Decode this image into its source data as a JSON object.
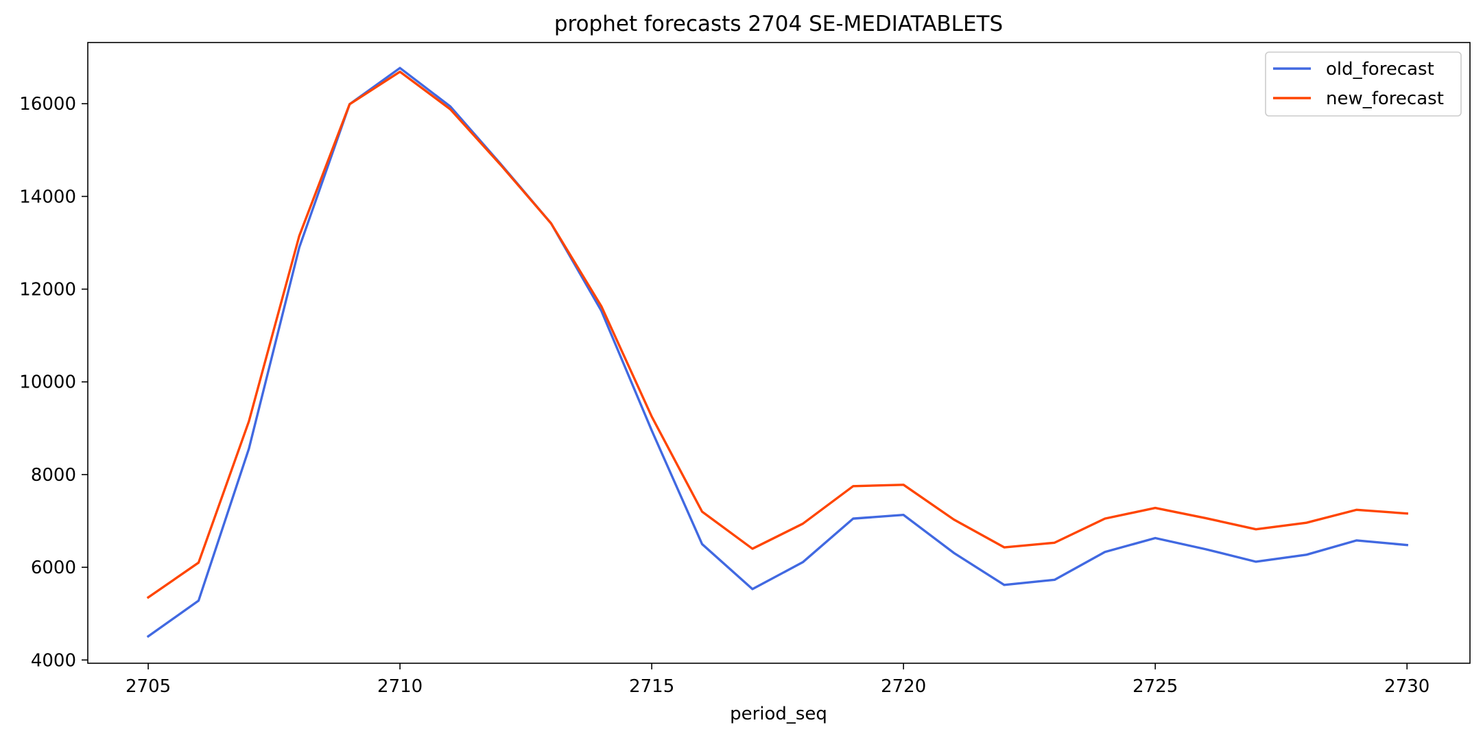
{
  "chart_data": {
    "type": "line",
    "title": "prophet forecasts 2704 SE-MEDIATABLETS",
    "xlabel": "period_seq",
    "ylabel": "",
    "x": [
      2705,
      2706,
      2707,
      2708,
      2709,
      2710,
      2711,
      2712,
      2713,
      2714,
      2715,
      2716,
      2717,
      2718,
      2719,
      2720,
      2721,
      2722,
      2723,
      2724,
      2725,
      2726,
      2727,
      2728,
      2729,
      2730
    ],
    "xlim": [
      2703.8,
      2731.25
    ],
    "ylim": [
      3930,
      17320
    ],
    "xticks": [
      2705,
      2710,
      2715,
      2720,
      2725,
      2730
    ],
    "yticks": [
      4000,
      6000,
      8000,
      10000,
      12000,
      14000,
      16000
    ],
    "grid": false,
    "legend_position": "top-right",
    "series": [
      {
        "name": "old_forecast",
        "color": "#4169e1",
        "values": [
          4510,
          5280,
          8560,
          12900,
          15990,
          16770,
          15940,
          14700,
          13420,
          11530,
          8950,
          6500,
          5530,
          6110,
          7050,
          7130,
          6310,
          5620,
          5730,
          6330,
          6630,
          6390,
          6120,
          6270,
          6580,
          6480
        ]
      },
      {
        "name": "new_forecast",
        "color": "#ff4500",
        "values": [
          5350,
          6100,
          9150,
          13150,
          15990,
          16690,
          15880,
          14680,
          13420,
          11630,
          9250,
          7200,
          6400,
          6940,
          7750,
          7780,
          7030,
          6430,
          6530,
          7050,
          7280,
          7060,
          6820,
          6960,
          7240,
          7160
        ]
      }
    ]
  }
}
